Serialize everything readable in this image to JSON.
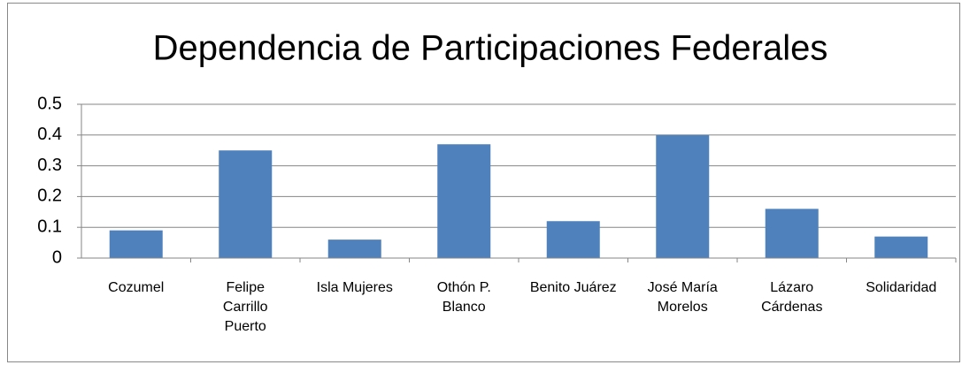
{
  "chart_data": {
    "type": "bar",
    "title": "Dependencia de Participaciones Federales",
    "categories": [
      "Cozumel",
      "Felipe Carrillo Puerto",
      "Isla Mujeres",
      "Othón P. Blanco",
      "Benito Juárez",
      "José María Morelos",
      "Lázaro Cárdenas",
      "Solidaridad"
    ],
    "values": [
      0.09,
      0.35,
      0.06,
      0.37,
      0.12,
      0.4,
      0.16,
      0.07
    ],
    "color": "#4f81bd",
    "ylim": [
      0,
      0.5
    ],
    "yticks": [
      0,
      0.1,
      0.2,
      0.3,
      0.4,
      0.5
    ],
    "grid": true
  }
}
